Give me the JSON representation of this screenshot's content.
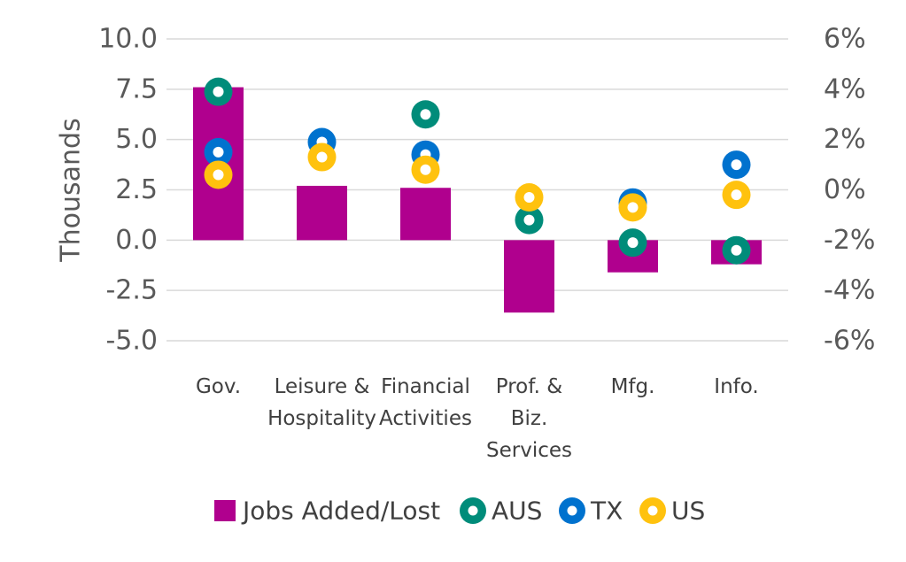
{
  "chart_data": {
    "type": "bar",
    "categories": [
      [
        "Gov."
      ],
      [
        "Leisure &",
        "Hospitality"
      ],
      [
        "Financial",
        "Activities"
      ],
      [
        "Prof. &",
        "Biz.",
        "Services"
      ],
      [
        "Mfg."
      ],
      [
        "Info."
      ]
    ],
    "ylabel": "Thousands",
    "ylim": [
      -5.0,
      10.0
    ],
    "y_ticks": [
      "10.0",
      "7.5",
      "5.0",
      "2.5",
      "0.0",
      "-2.5",
      "-5.0"
    ],
    "y2lim": [
      -6,
      6
    ],
    "y2_ticks": [
      "6%",
      "4%",
      "2%",
      "0%",
      "-2%",
      "-4%",
      "-6%"
    ],
    "grid": true,
    "legend_position": "bottom",
    "bar_series": {
      "name": "Jobs Added/Lost",
      "color": "#B0008E",
      "values": [
        7.6,
        2.7,
        2.6,
        -3.6,
        -1.6,
        -1.2
      ]
    },
    "point_series": [
      {
        "name": "AUS",
        "color": "#008C7A",
        "values": [
          3.9,
          null,
          3.0,
          -1.2,
          -2.1,
          -2.4
        ]
      },
      {
        "name": "TX",
        "color": "#0072CE",
        "values": [
          1.5,
          1.9,
          1.4,
          null,
          -0.5,
          1.0
        ]
      },
      {
        "name": "US",
        "color": "#FFC20E",
        "values": [
          0.6,
          1.3,
          0.8,
          -0.3,
          -0.7,
          -0.2
        ]
      }
    ]
  }
}
